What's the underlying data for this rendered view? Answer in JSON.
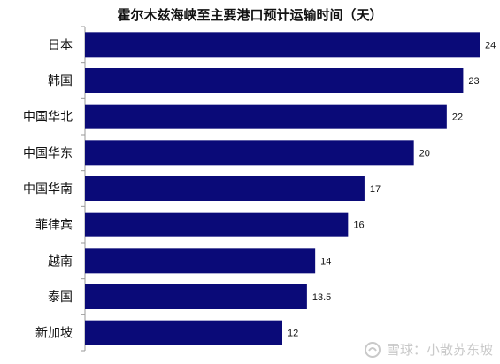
{
  "chart_data": {
    "type": "bar",
    "orientation": "horizontal",
    "title": "霍尔木兹海峡至主要港口预计运输时间（天）",
    "categories": [
      "日本",
      "韩国",
      "中国华北",
      "中国华东",
      "中国华南",
      "菲律宾",
      "越南",
      "泰国",
      "新加坡"
    ],
    "values": [
      24,
      23,
      22,
      20,
      17,
      16,
      14,
      13.5,
      12
    ],
    "value_labels": [
      "24",
      "23",
      "22",
      "20",
      "17",
      "16",
      "14",
      "13.5",
      "12"
    ],
    "xlim": [
      0,
      24
    ],
    "bar_color": "#0a0a78",
    "grid": false,
    "legend": "none"
  },
  "watermark": {
    "text": "雪球：小散苏东坡",
    "logo_icon": "snowball-logo-icon"
  }
}
